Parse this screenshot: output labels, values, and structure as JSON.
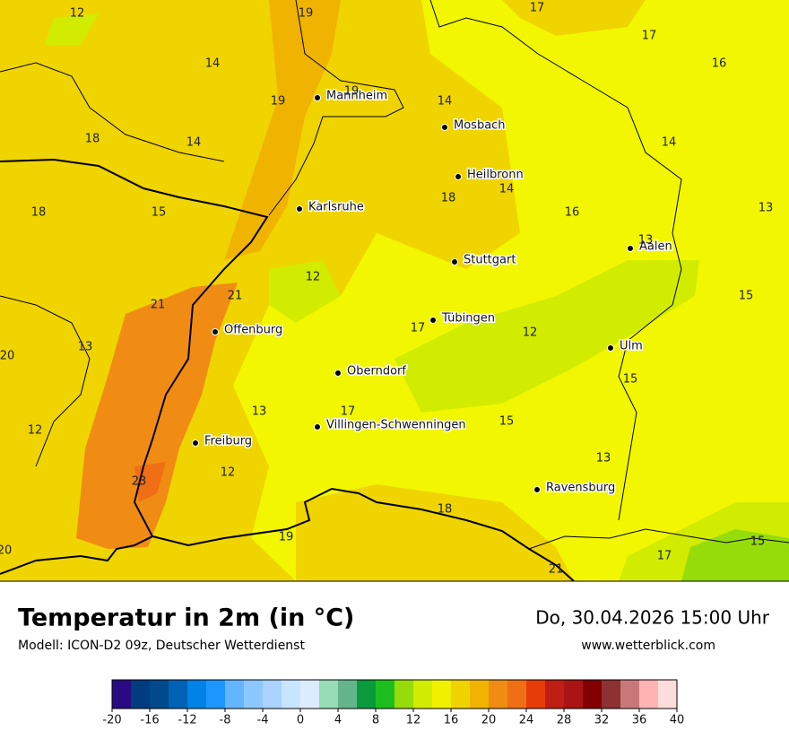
{
  "header": {
    "title": "Temperatur in 2m (in °C)",
    "model": "Modell: ICON-D2 09z, Deutscher Wetterdienst",
    "valid_time": "Do, 30.04.2026 15:00 Uhr",
    "source": "www.wetterblick.com"
  },
  "map": {
    "cities": [
      "Mannheim",
      "Mosbach",
      "Heilbronn",
      "Karlsruhe",
      "Aalen",
      "Stuttgart",
      "Offenburg",
      "Tübingen",
      "Ulm",
      "Oberndorf",
      "Villingen-Schwenningen",
      "Freiburg",
      "Ravensburg"
    ],
    "values": [
      12,
      19,
      17,
      17,
      16,
      14,
      19,
      19,
      14,
      18,
      14,
      14,
      14,
      18,
      18,
      15,
      16,
      13,
      13,
      12,
      21,
      21,
      15,
      17,
      12,
      13,
      20,
      15,
      13,
      17,
      15,
      12,
      13,
      12,
      23,
      18,
      19,
      20,
      17,
      15,
      21
    ]
  },
  "legend": {
    "colors": [
      "#2a0a82",
      "#003c80",
      "#004a8c",
      "#0062b4",
      "#0082e6",
      "#1e96ff",
      "#64b4ff",
      "#8cc8ff",
      "#aad4ff",
      "#c8e4ff",
      "#dcecff",
      "#96dcb4",
      "#64b48c",
      "#0a9a3c",
      "#1ebe1e",
      "#96dc0a",
      "#d2ec00",
      "#f0f000",
      "#f0d200",
      "#f0b400",
      "#f08c14",
      "#f06e14",
      "#e63c0a",
      "#be1e14",
      "#aa1414",
      "#820000",
      "#8c3232",
      "#c87878",
      "#ffb4b4",
      "#ffdcdc"
    ],
    "ticks": [
      -20,
      -16,
      -12,
      -8,
      -4,
      0,
      4,
      8,
      12,
      16,
      20,
      24,
      28,
      32,
      36,
      40
    ]
  }
}
